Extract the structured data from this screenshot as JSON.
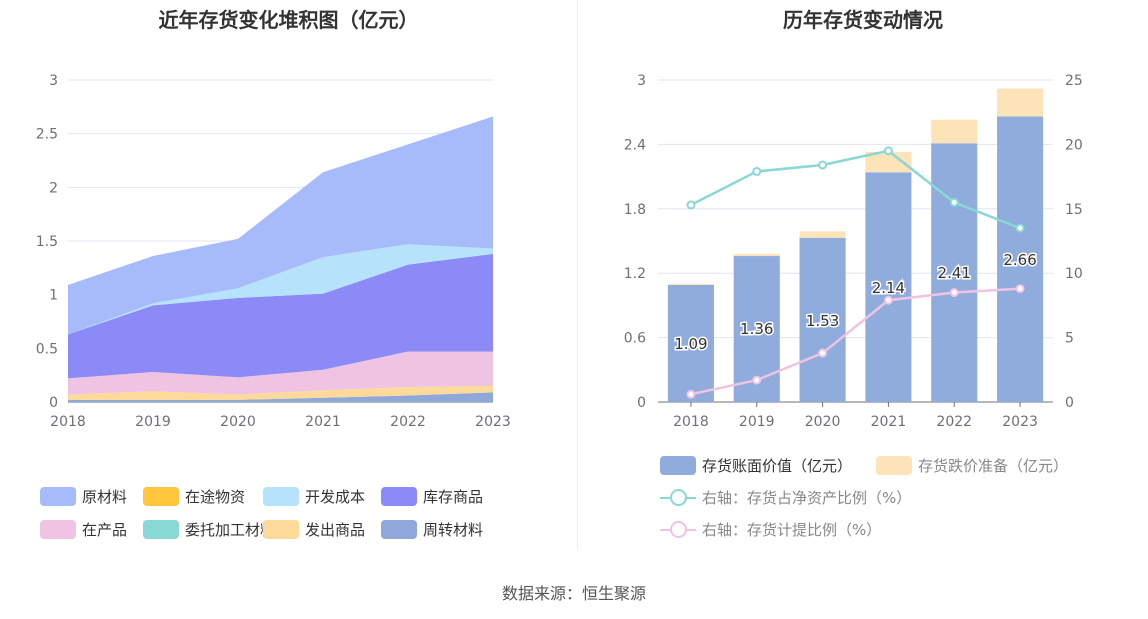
{
  "source_text": "数据来源：恒生聚源",
  "chart_data": [
    {
      "type": "area",
      "stacked": true,
      "title": "近年存货变化堆积图（亿元）",
      "categories": [
        "2018",
        "2019",
        "2020",
        "2021",
        "2022",
        "2023"
      ],
      "ylim": [
        0,
        3
      ],
      "yticks": [
        "0",
        "0.5",
        "1",
        "1.5",
        "2",
        "2.5",
        "3"
      ],
      "grid": true,
      "legend_position": "bottom",
      "series": [
        {
          "name": "周转材料",
          "color": "#8fa8dc",
          "values": [
            0.02,
            0.02,
            0.02,
            0.04,
            0.06,
            0.09
          ]
        },
        {
          "name": "发出商品",
          "color": "#fdd99a",
          "values": [
            0.05,
            0.08,
            0.05,
            0.07,
            0.08,
            0.06
          ]
        },
        {
          "name": "委托加工材料",
          "color": "#88d8d6",
          "values": [
            0,
            0,
            0,
            0,
            0,
            0
          ]
        },
        {
          "name": "在产品",
          "color": "#eec4e2",
          "values": [
            0.15,
            0.18,
            0.16,
            0.19,
            0.33,
            0.32
          ]
        },
        {
          "name": "库存商品",
          "color": "#8c8af7",
          "values": [
            0.41,
            0.62,
            0.74,
            0.71,
            0.81,
            0.91
          ]
        },
        {
          "name": "开发成本",
          "color": "#b6e3fb",
          "values": [
            0,
            0.02,
            0.09,
            0.34,
            0.19,
            0.05
          ]
        },
        {
          "name": "在途物资",
          "color": "#ffc53d",
          "values": [
            0,
            0,
            0,
            0,
            0,
            0
          ]
        },
        {
          "name": "原材料",
          "color": "#a7baf9",
          "values": [
            0.46,
            0.44,
            0.46,
            0.79,
            0.93,
            1.23
          ]
        }
      ],
      "legend_order": [
        "原材料",
        "在途物资",
        "开发成本",
        "库存商品",
        "在产品",
        "委托加工材料",
        "发出商品",
        "周转材料"
      ]
    },
    {
      "type": "bar+line",
      "title": "历年存货变动情况",
      "categories": [
        "2018",
        "2019",
        "2020",
        "2021",
        "2022",
        "2023"
      ],
      "ylim_left": [
        0,
        3
      ],
      "yticks_left": [
        "0",
        "0.6",
        "1.2",
        "1.8",
        "2.4",
        "3"
      ],
      "ylim_right": [
        0,
        25
      ],
      "yticks_right": [
        "0",
        "5",
        "10",
        "15",
        "20",
        "25"
      ],
      "grid": true,
      "legend_position": "bottom",
      "bars": [
        {
          "name": "存货账面价值（亿元）",
          "color": "#8facdd",
          "values": [
            1.09,
            1.36,
            1.53,
            2.14,
            2.41,
            2.66
          ],
          "labels": [
            "1.09",
            "1.36",
            "1.53",
            "2.14",
            "2.41",
            "2.66"
          ]
        },
        {
          "name": "存货跌价准备（亿元）",
          "color": "#fde3b8",
          "values": [
            0.01,
            0.02,
            0.06,
            0.19,
            0.22,
            0.26
          ]
        }
      ],
      "lines": [
        {
          "name": "右轴：存货占净资产比例（%）",
          "color": "#88d8d6",
          "values": [
            15.3,
            17.9,
            18.4,
            19.5,
            15.5,
            13.5
          ]
        },
        {
          "name": "右轴：存货计提比例（%）",
          "color": "#eec4e2",
          "values": [
            0.6,
            1.7,
            3.8,
            7.9,
            8.5,
            8.8
          ]
        }
      ]
    }
  ]
}
